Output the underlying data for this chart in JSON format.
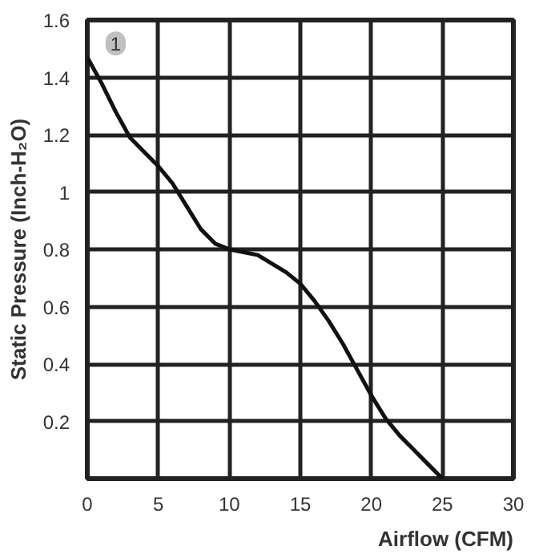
{
  "chart_data": {
    "type": "line",
    "xlabel": "Airflow (CFM)",
    "ylabel": "Static Pressure (Inch-H₂O)",
    "x": [
      0,
      1,
      2,
      3,
      4,
      5,
      6,
      7,
      8,
      9,
      10,
      11,
      12,
      13,
      14,
      15,
      16,
      17,
      18,
      19,
      20,
      21,
      22,
      23,
      24,
      25
    ],
    "series": [
      {
        "color": "#111111",
        "values": [
          1.47,
          1.38,
          1.28,
          1.19,
          1.14,
          1.09,
          1.03,
          0.95,
          0.87,
          0.82,
          0.8,
          0.79,
          0.78,
          0.75,
          0.72,
          0.68,
          0.62,
          0.55,
          0.47,
          0.38,
          0.29,
          0.21,
          0.15,
          0.1,
          0.05,
          0.0
        ]
      }
    ],
    "xlim": [
      0,
      30
    ],
    "ylim": [
      0,
      1.6
    ],
    "xticks": [
      0,
      5,
      10,
      15,
      20,
      25,
      30
    ],
    "yticks": [
      {
        "value": 0,
        "label": null
      },
      0.2,
      0.4,
      0.6,
      0.8,
      1,
      1.2,
      1.4,
      1.6
    ],
    "annotations": [
      "1"
    ],
    "grid": true,
    "marker": "none",
    "line_style": "solid"
  }
}
